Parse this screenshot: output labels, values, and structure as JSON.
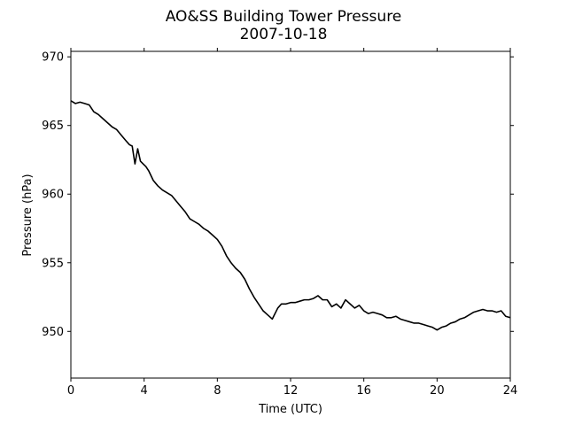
{
  "chart_data": {
    "type": "line",
    "title": "AO&SS Building Tower Pressure",
    "subtitle": "2007-10-18",
    "xlabel": "Time (UTC)",
    "ylabel": "Pressure (hPa)",
    "xlim": [
      0,
      24
    ],
    "ylim": [
      946.6,
      970.4
    ],
    "xticks": [
      0,
      4,
      8,
      12,
      16,
      20,
      24
    ],
    "xtick_labels": [
      "0",
      "4",
      "8",
      "12",
      "16",
      "20",
      "24"
    ],
    "yticks": [
      950,
      955,
      960,
      965,
      970
    ],
    "ytick_labels": [
      "950",
      "955",
      "960",
      "965",
      "970"
    ],
    "grid": false,
    "legend": "none",
    "line_color": "#000000",
    "series": [
      {
        "x": [
          0,
          0.25,
          0.5,
          0.75,
          1.0,
          1.25,
          1.5,
          1.75,
          2.0,
          2.25,
          2.5,
          2.75,
          3.0,
          3.2,
          3.35,
          3.5,
          3.65,
          3.8,
          3.95,
          4.1,
          4.25,
          4.5,
          4.75,
          5.0,
          5.25,
          5.5,
          5.75,
          6.0,
          6.25,
          6.5,
          6.75,
          7.0,
          7.25,
          7.5,
          7.75,
          8.0,
          8.25,
          8.5,
          8.75,
          9.0,
          9.25,
          9.5,
          9.75,
          10.0,
          10.25,
          10.5,
          10.75,
          11.0,
          11.15,
          11.3,
          11.5,
          11.75,
          12.0,
          12.25,
          12.5,
          12.75,
          13.0,
          13.25,
          13.5,
          13.75,
          14.0,
          14.25,
          14.5,
          14.75,
          15.0,
          15.25,
          15.5,
          15.75,
          16.0,
          16.25,
          16.5,
          16.75,
          17.0,
          17.25,
          17.5,
          17.75,
          18.0,
          18.25,
          18.5,
          18.75,
          19.0,
          19.25,
          19.5,
          19.75,
          20.0,
          20.25,
          20.5,
          20.75,
          21.0,
          21.25,
          21.5,
          21.75,
          22.0,
          22.25,
          22.5,
          22.75,
          23.0,
          23.25,
          23.5,
          23.75,
          24.0
        ],
        "values": [
          966.8,
          966.6,
          966.7,
          966.6,
          966.5,
          966.0,
          965.8,
          965.5,
          965.2,
          964.9,
          964.7,
          964.3,
          963.9,
          963.6,
          963.5,
          962.2,
          963.3,
          962.4,
          962.2,
          962.0,
          961.7,
          961.0,
          960.6,
          960.3,
          960.1,
          959.9,
          959.5,
          959.1,
          958.7,
          958.2,
          958.0,
          957.8,
          957.5,
          957.3,
          957.0,
          956.7,
          956.2,
          955.5,
          955.0,
          954.6,
          954.3,
          953.8,
          953.1,
          952.5,
          952.0,
          951.5,
          951.2,
          950.9,
          951.3,
          951.7,
          952.0,
          952.0,
          952.1,
          952.1,
          952.2,
          952.3,
          952.3,
          952.4,
          952.6,
          952.3,
          952.3,
          951.8,
          952.0,
          951.7,
          952.3,
          952.0,
          951.7,
          951.9,
          951.5,
          951.3,
          951.4,
          951.3,
          951.2,
          951.0,
          951.0,
          951.1,
          950.9,
          950.8,
          950.7,
          950.6,
          950.6,
          950.5,
          950.4,
          950.3,
          950.1,
          950.3,
          950.4,
          950.6,
          950.7,
          950.9,
          951.0,
          951.2,
          951.4,
          951.5,
          951.6,
          951.5,
          951.5,
          951.4,
          951.5,
          951.1,
          951.0
        ]
      }
    ]
  }
}
